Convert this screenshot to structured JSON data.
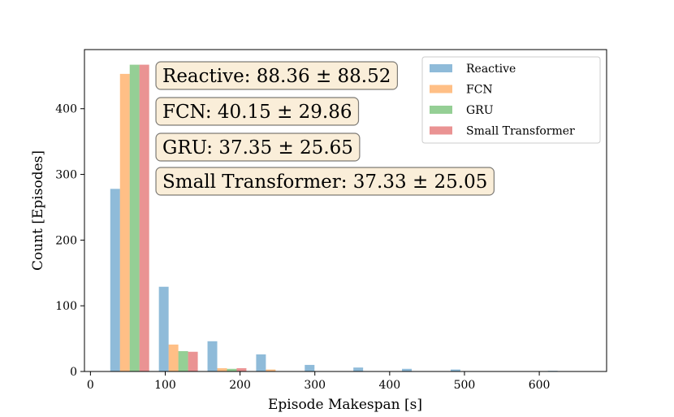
{
  "chart_data": {
    "type": "bar",
    "title": "",
    "xlabel": "Episode Makespan [s]",
    "ylabel": "Count [Episodes]",
    "xlim": [
      -8,
      690
    ],
    "ylim": [
      0,
      490
    ],
    "xticks": [
      0,
      100,
      200,
      300,
      400,
      500,
      600
    ],
    "yticks": [
      0,
      100,
      200,
      300,
      400
    ],
    "bin_edges": [
      20,
      85,
      150,
      215,
      280,
      345,
      410,
      475,
      540,
      605,
      670
    ],
    "series": [
      {
        "name": "Reactive",
        "color": "#1f77b4",
        "values": [
          278,
          129,
          46,
          26,
          10,
          6,
          4,
          3,
          0,
          1
        ]
      },
      {
        "name": "FCN",
        "color": "#ff7f0e",
        "values": [
          453,
          41,
          5,
          3,
          0,
          0,
          0,
          0,
          0,
          0
        ]
      },
      {
        "name": "GRU",
        "color": "#2ca02c",
        "values": [
          467,
          31,
          4,
          0,
          0,
          0,
          0,
          0,
          0,
          0
        ]
      },
      {
        "name": "Small Transformer",
        "color": "#d62728",
        "values": [
          467,
          30,
          5,
          0,
          0,
          0,
          0,
          0,
          0,
          0
        ]
      }
    ],
    "legend_position": "top-right",
    "grid": false,
    "annotations": [
      "Reactive: 88.36 ± 88.52",
      "FCN: 40.15 ± 29.86",
      "GRU: 37.35 ± 25.65",
      "Small Transformer: 37.33 ± 25.05"
    ]
  }
}
